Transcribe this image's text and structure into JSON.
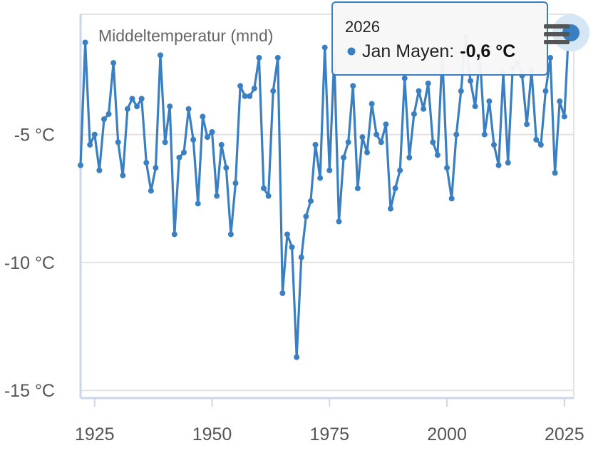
{
  "chart_data": {
    "type": "line",
    "title": "",
    "xlabel": "",
    "ylabel": "",
    "series_label": "Middeltemperatur (mnd)",
    "xlim": [
      1922,
      2027
    ],
    "ylim": [
      -15.3,
      -0.3
    ],
    "x_ticks": [
      {
        "value": 1925,
        "label": "1925"
      },
      {
        "value": 1950,
        "label": "1950"
      },
      {
        "value": 1975,
        "label": "1975"
      },
      {
        "value": 2000,
        "label": "2000"
      },
      {
        "value": 2025,
        "label": "2025"
      }
    ],
    "y_ticks": [
      {
        "value": -5,
        "label": "-5 °C"
      },
      {
        "value": -10,
        "label": "-10 °C"
      },
      {
        "value": -15,
        "label": "-15 °C"
      }
    ],
    "grid": true,
    "series": [
      {
        "name": "Jan Mayen",
        "color": "#3a7fc1",
        "x": [
          1922,
          1923,
          1924,
          1925,
          1926,
          1927,
          1928,
          1929,
          1930,
          1931,
          1932,
          1933,
          1934,
          1935,
          1936,
          1937,
          1938,
          1939,
          1940,
          1941,
          1942,
          1943,
          1944,
          1945,
          1946,
          1947,
          1948,
          1949,
          1950,
          1951,
          1952,
          1953,
          1954,
          1955,
          1956,
          1957,
          1958,
          1959,
          1960,
          1961,
          1962,
          1963,
          1964,
          1965,
          1966,
          1967,
          1968,
          1969,
          1970,
          1971,
          1972,
          1973,
          1974,
          1975,
          1976,
          1977,
          1978,
          1979,
          1980,
          1981,
          1982,
          1983,
          1984,
          1985,
          1986,
          1987,
          1988,
          1989,
          1990,
          1991,
          1992,
          1993,
          1994,
          1995,
          1996,
          1997,
          1998,
          1999,
          2000,
          2001,
          2002,
          2003,
          2004,
          2005,
          2006,
          2007,
          2008,
          2009,
          2010,
          2011,
          2012,
          2013,
          2014,
          2015,
          2016,
          2017,
          2018,
          2019,
          2020,
          2021,
          2022,
          2023,
          2024,
          2025,
          2026
        ],
        "y": [
          -6.2,
          -1.4,
          -5.4,
          -5.0,
          -6.4,
          -4.4,
          -4.2,
          -2.2,
          -5.3,
          -6.6,
          -4.0,
          -3.6,
          -3.9,
          -3.6,
          -6.1,
          -7.2,
          -6.3,
          -1.9,
          -5.3,
          -3.9,
          -8.9,
          -5.9,
          -5.7,
          -4.0,
          -5.2,
          -7.7,
          -4.3,
          -5.1,
          -4.9,
          -7.4,
          -5.4,
          -6.3,
          -8.9,
          -6.9,
          -3.1,
          -3.5,
          -3.5,
          -3.2,
          -2.0,
          -7.1,
          -7.4,
          -3.3,
          -2.0,
          -11.2,
          -8.9,
          -9.4,
          -13.7,
          -9.8,
          -8.2,
          -7.6,
          -5.4,
          -6.7,
          -1.6,
          -6.4,
          -2.0,
          -8.4,
          -5.9,
          -5.3,
          -3.1,
          -7.1,
          -5.1,
          -5.7,
          -3.8,
          -5.0,
          -5.3,
          -4.6,
          -7.9,
          -7.1,
          -6.4,
          -2.8,
          -5.9,
          -4.2,
          -3.3,
          -4.0,
          -3.0,
          -5.3,
          -5.8,
          -1.9,
          -6.3,
          -7.5,
          -5.0,
          -3.3,
          -1.2,
          -2.9,
          -3.9,
          -1.9,
          -5.0,
          -3.7,
          -5.4,
          -6.2,
          -2.6,
          -6.1,
          -2.4,
          -2.2,
          -2.7,
          -4.6,
          -2.5,
          -5.2,
          -5.4,
          -3.3,
          -2.0,
          -6.5,
          -3.7,
          -4.3,
          -0.6
        ]
      }
    ]
  },
  "tooltip": {
    "year": "2026",
    "series_name": "Jan Mayen:",
    "value": "-0,6 °C"
  },
  "menu": {
    "icon": "hamburger-menu-icon"
  }
}
